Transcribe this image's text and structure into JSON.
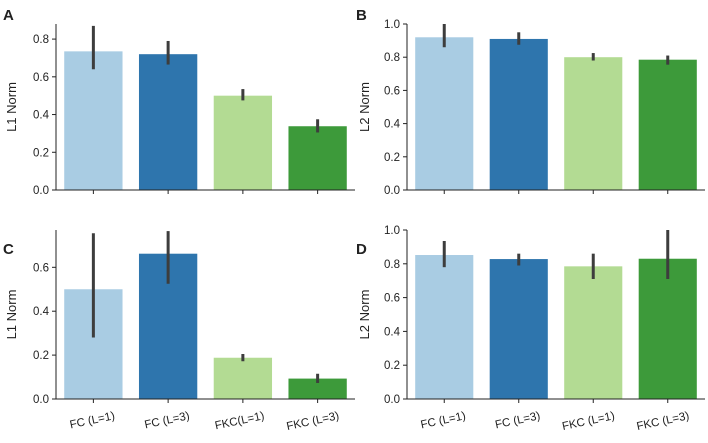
{
  "chart_data": [
    {
      "type": "bar",
      "panel": "A",
      "categories": [
        "FC (L=1)",
        "FC (L=3)",
        "FKC(L=1)",
        "FKC (L=3)"
      ],
      "values": [
        0.735,
        0.72,
        0.5,
        0.338
      ],
      "error_low": [
        0.64,
        0.665,
        0.475,
        0.305
      ],
      "error_high": [
        0.87,
        0.79,
        0.535,
        0.375
      ],
      "colors": [
        "#a9cce3",
        "#2e75ad",
        "#b3db93",
        "#3d9a3a"
      ],
      "xlabel": "",
      "ylabel": "L1 Norm",
      "ylim": [
        0,
        0.88
      ],
      "yticks": [
        0.0,
        0.2,
        0.4,
        0.6,
        0.8
      ],
      "ytick_labels": [
        "0.0",
        "0.2",
        "0.4",
        "0.6",
        "0.8"
      ],
      "show_xticklabels": false
    },
    {
      "type": "bar",
      "panel": "B",
      "categories": [
        "FC (L=1)",
        "FC (L=3)",
        "FKC (L=1)",
        "FKC (L=3)"
      ],
      "values": [
        0.92,
        0.91,
        0.8,
        0.785
      ],
      "error_low": [
        0.86,
        0.875,
        0.78,
        0.755
      ],
      "error_high": [
        1.0,
        0.95,
        0.825,
        0.81
      ],
      "colors": [
        "#a9cce3",
        "#2e75ad",
        "#b3db93",
        "#3d9a3a"
      ],
      "xlabel": "",
      "ylabel": "L2 Norm",
      "ylim": [
        0,
        1.0
      ],
      "yticks": [
        0.0,
        0.2,
        0.4,
        0.6,
        0.8,
        1.0
      ],
      "ytick_labels": [
        "0.0",
        "0.2",
        "0.4",
        "0.6",
        "0.8",
        "1.0"
      ],
      "show_xticklabels": false
    },
    {
      "type": "bar",
      "panel": "C",
      "categories": [
        "FC (L=1)",
        "FC (L=3)",
        "FKC(L=1)",
        "FKC (L=3)"
      ],
      "values": [
        0.5,
        0.662,
        0.188,
        0.093
      ],
      "error_low": [
        0.28,
        0.525,
        0.172,
        0.073
      ],
      "error_high": [
        0.755,
        0.765,
        0.205,
        0.115
      ],
      "colors": [
        "#a9cce3",
        "#2e75ad",
        "#b3db93",
        "#3d9a3a"
      ],
      "xlabel": "",
      "ylabel": "L1 Norm",
      "ylim": [
        0,
        0.77
      ],
      "yticks": [
        0.0,
        0.2,
        0.4,
        0.6
      ],
      "ytick_labels": [
        "0.0",
        "0.2",
        "0.4",
        "0.6"
      ],
      "show_xticklabels": true
    },
    {
      "type": "bar",
      "panel": "D",
      "categories": [
        "FC (L=1)",
        "FC (L=3)",
        "FKC (L=1)",
        "FKC (L=3)"
      ],
      "values": [
        0.852,
        0.828,
        0.785,
        0.83
      ],
      "error_low": [
        0.78,
        0.79,
        0.71,
        0.71
      ],
      "error_high": [
        0.935,
        0.86,
        0.86,
        1.0
      ],
      "colors": [
        "#a9cce3",
        "#2e75ad",
        "#b3db93",
        "#3d9a3a"
      ],
      "xlabel": "",
      "ylabel": "L2 Norm",
      "ylim": [
        0,
        1.0
      ],
      "yticks": [
        0.0,
        0.2,
        0.4,
        0.6,
        0.8,
        1.0
      ],
      "ytick_labels": [
        "0.0",
        "0.2",
        "0.4",
        "0.6",
        "0.8",
        "1.0"
      ],
      "show_xticklabels": true
    }
  ]
}
